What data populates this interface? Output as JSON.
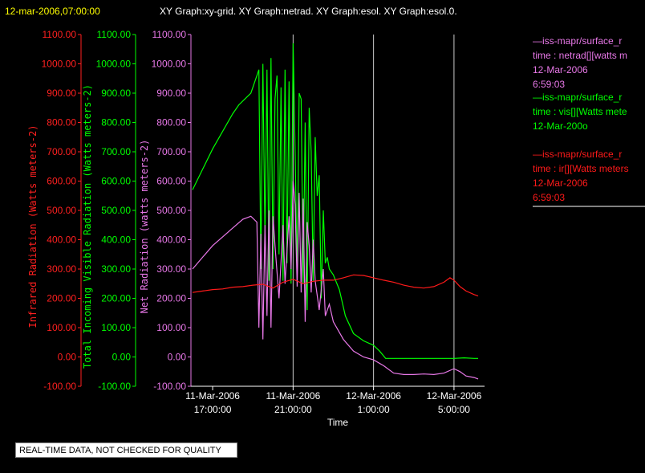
{
  "header": {
    "timestamp": "12-mar-2006,07:00:00",
    "graphs": "XY Graph:xy-grid.  XY Graph:netrad.  XY Graph:esol.  XY Graph:esol.0."
  },
  "notice": "REAL-TIME DATA, NOT CHECKED FOR QUALITY",
  "legend": [
    {
      "line1": "—iss-mapr/surface_r",
      "line2": "time : netrad[][watts m",
      "line3": "12-Mar-2006",
      "line4": "6:59:03",
      "color": "#e878e8"
    },
    {
      "line1": "—iss-mapr/surface_r",
      "line2": "time : vis[][Watts mete",
      "line3": "12-Mar-200o",
      "line4": "",
      "color": "#00ff00"
    },
    {
      "line1": "—iss-mapr/surface_r",
      "line2": "time : ir[][Watts meters",
      "line3": "12-Mar-2006",
      "line4": "6:59:03",
      "color": "#ff1a1a"
    }
  ],
  "chart_data": {
    "type": "line",
    "xlabel": "Time",
    "x_ticks": [
      {
        "d": "11-Mar-2006",
        "t": "17:00:00",
        "h": 17
      },
      {
        "d": "11-Mar-2006",
        "t": "21:00:00",
        "h": 21
      },
      {
        "d": "12-Mar-2006",
        "t": "1:00:00",
        "h": 25
      },
      {
        "d": "12-Mar-2006",
        "t": "5:00:00",
        "h": 29
      }
    ],
    "x_range_hours": [
      16.0,
      30.2
    ],
    "ylim": [
      -100,
      1100
    ],
    "y_ticks": [
      "-100.00",
      "0.00",
      "100.00",
      "200.00",
      "300.00",
      "400.00",
      "500.00",
      "600.00",
      "700.00",
      "800.00",
      "900.00",
      "1000.00",
      "1100.00"
    ],
    "y_tick_values": [
      -100,
      0,
      100,
      200,
      300,
      400,
      500,
      600,
      700,
      800,
      900,
      1000,
      1100
    ],
    "axes": [
      {
        "label": "Infrared Radiation (Watts meters-2)",
        "color": "#ff2020"
      },
      {
        "label": "Total Incoming Visible Radiation (Watts meters-2)",
        "color": "#00ff00"
      },
      {
        "label": "Net Radiation (watts meters-2)",
        "color": "#e878e8"
      }
    ],
    "grid_x_hours": [
      21,
      25,
      29
    ],
    "series": [
      {
        "name": "vis",
        "color": "#00ff00",
        "points": [
          [
            16,
            570
          ],
          [
            16.5,
            640
          ],
          [
            17,
            710
          ],
          [
            17.5,
            770
          ],
          [
            18,
            830
          ],
          [
            18.3,
            860
          ],
          [
            18.6,
            880
          ],
          [
            18.9,
            900
          ],
          [
            19.1,
            940
          ],
          [
            19.3,
            980
          ],
          [
            19.4,
            300
          ],
          [
            19.5,
            1000
          ],
          [
            19.6,
            400
          ],
          [
            19.7,
            980
          ],
          [
            19.8,
            260
          ],
          [
            19.9,
            1020
          ],
          [
            20.0,
            300
          ],
          [
            20.1,
            880
          ],
          [
            20.2,
            960
          ],
          [
            20.3,
            350
          ],
          [
            20.4,
            920
          ],
          [
            20.5,
            260
          ],
          [
            20.6,
            980
          ],
          [
            20.7,
            320
          ],
          [
            20.8,
            940
          ],
          [
            20.9,
            250
          ],
          [
            21.0,
            1070
          ],
          [
            21.1,
            700
          ],
          [
            21.2,
            280
          ],
          [
            21.3,
            900
          ],
          [
            21.4,
            880
          ],
          [
            21.5,
            250
          ],
          [
            21.6,
            800
          ],
          [
            21.7,
            160
          ],
          [
            21.8,
            850
          ],
          [
            21.9,
            700
          ],
          [
            22.0,
            260
          ],
          [
            22.1,
            750
          ],
          [
            22.2,
            550
          ],
          [
            22.3,
            620
          ],
          [
            22.4,
            200
          ],
          [
            22.5,
            500
          ],
          [
            22.6,
            320
          ],
          [
            22.7,
            340
          ],
          [
            22.8,
            300
          ],
          [
            23.0,
            280
          ],
          [
            23.3,
            230
          ],
          [
            23.6,
            140
          ],
          [
            24.0,
            80
          ],
          [
            24.5,
            55
          ],
          [
            25.0,
            40
          ],
          [
            25.3,
            20
          ],
          [
            25.6,
            -5
          ],
          [
            26,
            -5
          ],
          [
            27,
            -5
          ],
          [
            28,
            -5
          ],
          [
            29,
            -5
          ],
          [
            29.5,
            -3
          ],
          [
            30,
            -5
          ],
          [
            30.2,
            -5
          ]
        ]
      },
      {
        "name": "netrad",
        "color": "#e878e8",
        "points": [
          [
            16,
            300
          ],
          [
            16.5,
            340
          ],
          [
            17,
            380
          ],
          [
            17.5,
            410
          ],
          [
            18,
            440
          ],
          [
            18.5,
            470
          ],
          [
            18.9,
            480
          ],
          [
            19.2,
            460
          ],
          [
            19.3,
            100
          ],
          [
            19.4,
            420
          ],
          [
            19.5,
            60
          ],
          [
            19.6,
            450
          ],
          [
            19.7,
            140
          ],
          [
            19.8,
            500
          ],
          [
            19.9,
            100
          ],
          [
            20.0,
            480
          ],
          [
            20.1,
            380
          ],
          [
            20.3,
            200
          ],
          [
            20.5,
            450
          ],
          [
            20.6,
            250
          ],
          [
            20.8,
            480
          ],
          [
            20.9,
            300
          ],
          [
            21.0,
            600
          ],
          [
            21.1,
            520
          ],
          [
            21.2,
            240
          ],
          [
            21.3,
            560
          ],
          [
            21.4,
            220
          ],
          [
            21.5,
            540
          ],
          [
            21.6,
            120
          ],
          [
            21.7,
            460
          ],
          [
            21.8,
            380
          ],
          [
            21.9,
            220
          ],
          [
            22.0,
            400
          ],
          [
            22.1,
            260
          ],
          [
            22.3,
            160
          ],
          [
            22.5,
            300
          ],
          [
            22.6,
            140
          ],
          [
            22.8,
            180
          ],
          [
            23.0,
            120
          ],
          [
            23.5,
            60
          ],
          [
            24.0,
            20
          ],
          [
            24.5,
            0
          ],
          [
            25.0,
            -10
          ],
          [
            25.5,
            -30
          ],
          [
            26,
            -55
          ],
          [
            26.5,
            -60
          ],
          [
            27,
            -60
          ],
          [
            27.5,
            -58
          ],
          [
            28,
            -60
          ],
          [
            28.5,
            -55
          ],
          [
            29,
            -40
          ],
          [
            29.3,
            -50
          ],
          [
            29.6,
            -65
          ],
          [
            30,
            -70
          ],
          [
            30.2,
            -75
          ]
        ]
      },
      {
        "name": "ir",
        "color": "#ff1a1a",
        "points": [
          [
            16,
            220
          ],
          [
            16.5,
            225
          ],
          [
            17,
            230
          ],
          [
            17.5,
            232
          ],
          [
            18,
            238
          ],
          [
            18.5,
            240
          ],
          [
            19,
            245
          ],
          [
            19.5,
            248
          ],
          [
            20,
            235
          ],
          [
            20.5,
            255
          ],
          [
            21,
            265
          ],
          [
            21.5,
            250
          ],
          [
            22,
            258
          ],
          [
            22.5,
            262
          ],
          [
            23,
            262
          ],
          [
            23.5,
            270
          ],
          [
            24,
            280
          ],
          [
            24.5,
            278
          ],
          [
            25,
            270
          ],
          [
            25.5,
            262
          ],
          [
            26,
            255
          ],
          [
            26.5,
            245
          ],
          [
            27,
            238
          ],
          [
            27.5,
            235
          ],
          [
            28,
            240
          ],
          [
            28.5,
            255
          ],
          [
            28.8,
            270
          ],
          [
            29,
            262
          ],
          [
            29.3,
            240
          ],
          [
            29.6,
            225
          ],
          [
            30,
            213
          ],
          [
            30.2,
            208
          ]
        ]
      }
    ]
  }
}
